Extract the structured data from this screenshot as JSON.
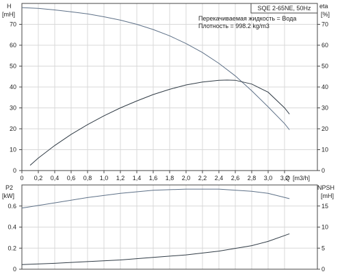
{
  "chart_data": [
    {
      "type": "line",
      "panel": "top",
      "title_box": "SQE 2-65NE, 50Hz",
      "annotations": [
        "Перекачиваемая жидкость = Вода",
        "Плотность = 998.2 kg/m3"
      ],
      "ylabel_left": [
        "H",
        "[mH]"
      ],
      "ylabel_right": [
        "eta",
        "[%]"
      ],
      "xlabel": [
        "Q",
        "[m3/h]"
      ],
      "xlim": [
        0,
        3.6
      ],
      "xticks": [
        "0",
        "0,2",
        "0,4",
        "0,6",
        "0,8",
        "1,0",
        "1,2",
        "1,4",
        "1,6",
        "1,8",
        "2,0",
        "2,2",
        "2,4",
        "2,6",
        "2,8",
        "3,0",
        "3,2"
      ],
      "ylim_left": [
        0,
        80
      ],
      "yticks_left": [
        "0",
        "10",
        "20",
        "30",
        "40",
        "50",
        "60",
        "70"
      ],
      "ylim_right": [
        0,
        80
      ],
      "yticks_right": [
        "0",
        "10",
        "20",
        "30",
        "40",
        "50",
        "60",
        "70"
      ],
      "grid": true,
      "series": [
        {
          "axis": "left",
          "color": "#5c6f86",
          "points": [
            [
              0,
              78
            ],
            [
              0.2,
              77.6
            ],
            [
              0.4,
              76.9
            ],
            [
              0.6,
              76
            ],
            [
              0.8,
              75
            ],
            [
              1.0,
              73.6
            ],
            [
              1.2,
              72
            ],
            [
              1.4,
              70
            ],
            [
              1.6,
              67.5
            ],
            [
              1.8,
              64.5
            ],
            [
              2.0,
              60.8
            ],
            [
              2.2,
              56.5
            ],
            [
              2.4,
              51.3
            ],
            [
              2.6,
              45.3
            ],
            [
              2.8,
              38.2
            ],
            [
              3.0,
              30.5
            ],
            [
              3.2,
              22.5
            ],
            [
              3.26,
              19.5
            ]
          ]
        },
        {
          "axis": "right",
          "color": "#2f3a44",
          "points": [
            [
              0.1,
              2.5
            ],
            [
              0.2,
              6
            ],
            [
              0.4,
              12
            ],
            [
              0.6,
              17.3
            ],
            [
              0.8,
              22
            ],
            [
              1.0,
              26.2
            ],
            [
              1.2,
              30
            ],
            [
              1.4,
              33.3
            ],
            [
              1.6,
              36.4
            ],
            [
              1.8,
              38.9
            ],
            [
              2.0,
              41
            ],
            [
              2.2,
              42.4
            ],
            [
              2.4,
              43.2
            ],
            [
              2.5,
              43.3
            ],
            [
              2.6,
              43.2
            ],
            [
              2.8,
              41.4
            ],
            [
              3.0,
              37.5
            ],
            [
              3.2,
              30
            ],
            [
              3.26,
              27
            ]
          ]
        }
      ]
    },
    {
      "type": "line",
      "panel": "bottom",
      "ylabel_left": [
        "P2",
        "[kW]"
      ],
      "ylabel_right": [
        "NPSH",
        "[mH]"
      ],
      "xlim": [
        0,
        3.6
      ],
      "ylim_left": [
        0,
        0.8
      ],
      "yticks_left": [
        "0",
        "0.2",
        "0.4",
        "0.6"
      ],
      "ylim_right": [
        0,
        20
      ],
      "yticks_right": [
        "0",
        "5",
        "10",
        "15"
      ],
      "grid": true,
      "series": [
        {
          "axis": "left",
          "color": "#5c6f86",
          "points": [
            [
              0,
              0.58
            ],
            [
              0.4,
              0.63
            ],
            [
              0.8,
              0.68
            ],
            [
              1.2,
              0.72
            ],
            [
              1.6,
              0.75
            ],
            [
              2.0,
              0.76
            ],
            [
              2.4,
              0.76
            ],
            [
              2.8,
              0.74
            ],
            [
              3.0,
              0.72
            ],
            [
              3.26,
              0.67
            ]
          ]
        },
        {
          "axis": "right",
          "color": "#2f3a44",
          "points": [
            [
              0,
              1.1
            ],
            [
              0.4,
              1.4
            ],
            [
              0.8,
              1.8
            ],
            [
              1.2,
              2.2
            ],
            [
              1.6,
              2.8
            ],
            [
              2.0,
              3.4
            ],
            [
              2.4,
              4.3
            ],
            [
              2.8,
              5.6
            ],
            [
              3.0,
              6.6
            ],
            [
              3.26,
              8.4
            ]
          ]
        }
      ]
    }
  ]
}
